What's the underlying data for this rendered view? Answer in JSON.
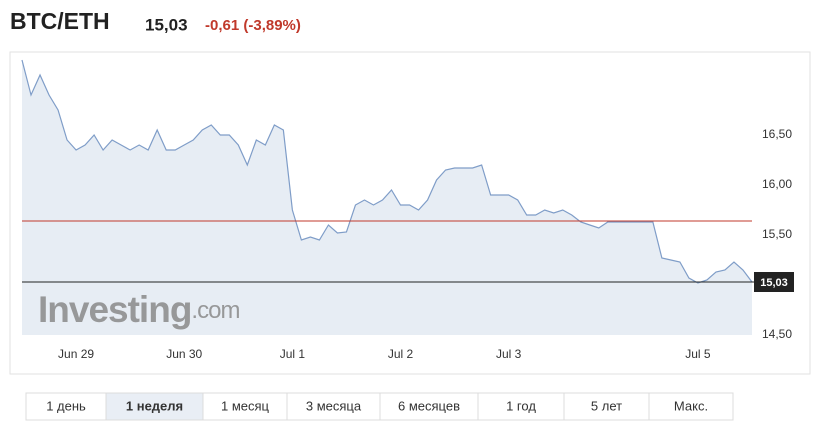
{
  "header": {
    "symbol": "BTC/ETH",
    "price": "15,03",
    "change": "-0,61 (-3,89%)"
  },
  "watermark": {
    "brand": "Investing",
    "suffix": ".com"
  },
  "chart_data": {
    "type": "area",
    "categories": [
      null,
      null,
      null,
      null,
      null,
      null,
      "Jun 29",
      null,
      null,
      null,
      null,
      null,
      null,
      null,
      null,
      null,
      null,
      null,
      "Jun 30",
      null,
      null,
      null,
      null,
      null,
      null,
      null,
      null,
      null,
      null,
      null,
      "Jul 1",
      null,
      null,
      null,
      null,
      null,
      null,
      null,
      null,
      null,
      null,
      null,
      "Jul 2",
      null,
      null,
      null,
      null,
      null,
      null,
      null,
      null,
      null,
      null,
      null,
      "Jul 3",
      null,
      null,
      null,
      null,
      null,
      null,
      null,
      null,
      null,
      null,
      null,
      null,
      null,
      null,
      null,
      null,
      null,
      null,
      null,
      null,
      "Jul 5",
      null,
      null,
      null,
      null,
      null,
      null
    ],
    "values": [
      17.25,
      16.9,
      17.1,
      16.9,
      16.75,
      16.45,
      16.35,
      16.4,
      16.5,
      16.35,
      16.45,
      16.4,
      16.35,
      16.4,
      16.35,
      16.55,
      16.35,
      16.35,
      16.4,
      16.45,
      16.55,
      16.6,
      16.5,
      16.5,
      16.4,
      16.2,
      16.45,
      16.4,
      16.6,
      16.55,
      15.75,
      15.45,
      15.48,
      15.45,
      15.6,
      15.52,
      15.53,
      15.8,
      15.85,
      15.8,
      15.85,
      15.95,
      15.8,
      15.8,
      15.75,
      15.85,
      16.05,
      16.15,
      16.17,
      16.17,
      16.17,
      16.2,
      15.9,
      15.9,
      15.9,
      15.85,
      15.7,
      15.7,
      15.75,
      15.72,
      15.75,
      15.7,
      15.63,
      15.6,
      15.57,
      15.63,
      15.63,
      15.63,
      15.63,
      15.63,
      15.63,
      15.27,
      15.25,
      15.23,
      15.07,
      15.02,
      15.05,
      15.13,
      15.15,
      15.23,
      15.15,
      15.03
    ],
    "color": "#7f9dc8",
    "fill": "#e7edf4",
    "ylim": [
      14.5,
      17.33
    ],
    "yticks": [
      {
        "value": 14.5,
        "label": "14,50"
      },
      {
        "value": 15.5,
        "label": "15,50"
      },
      {
        "value": 16,
        "label": "16,00"
      },
      {
        "value": 16.5,
        "label": "16,50"
      }
    ],
    "reference_line": {
      "value": 15.64,
      "color": "#c0392b"
    },
    "grid": false
  },
  "ranges": {
    "items": [
      "1 день",
      "1 неделя",
      "1 месяц",
      "3 месяца",
      "6 месяцев",
      "1 год",
      "5 лет",
      "Макс."
    ],
    "selected": 1
  }
}
